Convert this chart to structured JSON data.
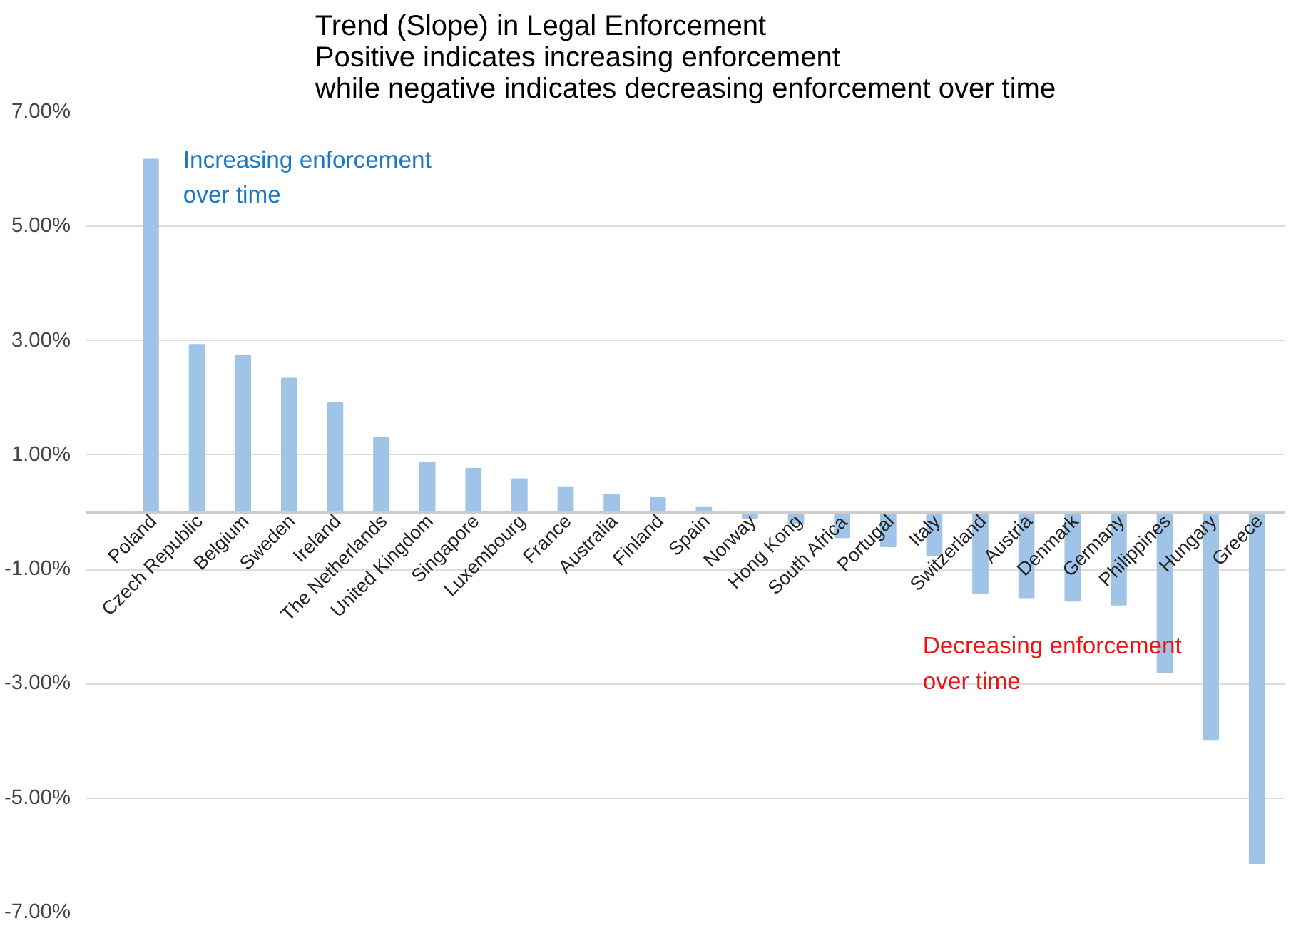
{
  "chart_data": {
    "type": "bar",
    "title": "Trend (Slope) in Legal Enforcement\nPositive indicates increasing enforcement\nwhile negative indicates decreasing enforcement over time",
    "categories": [
      "Poland",
      "Czech Republic",
      "Belgium",
      "Sweden",
      "Ireland",
      "The Netherlands",
      "United Kingdom",
      "Singapore",
      "Luxembourg",
      "France",
      "Australia",
      "Finland",
      "Spain",
      "Norway",
      "Hong Kong",
      "South Africa",
      "Portugal",
      "Italy",
      "Switzerland",
      "Austria",
      "Denmark",
      "Germany",
      "Philippines",
      "Hungary",
      "Greece"
    ],
    "values": [
      6.17,
      2.93,
      2.74,
      2.34,
      1.91,
      1.3,
      0.87,
      0.76,
      0.58,
      0.44,
      0.31,
      0.25,
      0.09,
      -0.1,
      -0.2,
      -0.44,
      -0.6,
      -0.75,
      -1.41,
      -1.49,
      -1.55,
      -1.62,
      -2.8,
      -3.97,
      -6.14
    ],
    "color": "#a0c4e8",
    "ylim": [
      -7,
      7
    ],
    "yticks": [
      {
        "value": -7,
        "label": "-7.00%"
      },
      {
        "value": -5,
        "label": "-5.00%"
      },
      {
        "value": -3,
        "label": "-3.00%"
      },
      {
        "value": -1,
        "label": "-1.00%"
      },
      {
        "value": 1,
        "label": "1.00%"
      },
      {
        "value": 3,
        "label": "3.00%"
      },
      {
        "value": 5,
        "label": "5.00%"
      },
      {
        "value": 7,
        "label": "7.00%"
      }
    ],
    "grid": "y",
    "annotations": [
      "Increasing enforcement\nover time",
      "Decreasing enforcement\nover time"
    ]
  }
}
